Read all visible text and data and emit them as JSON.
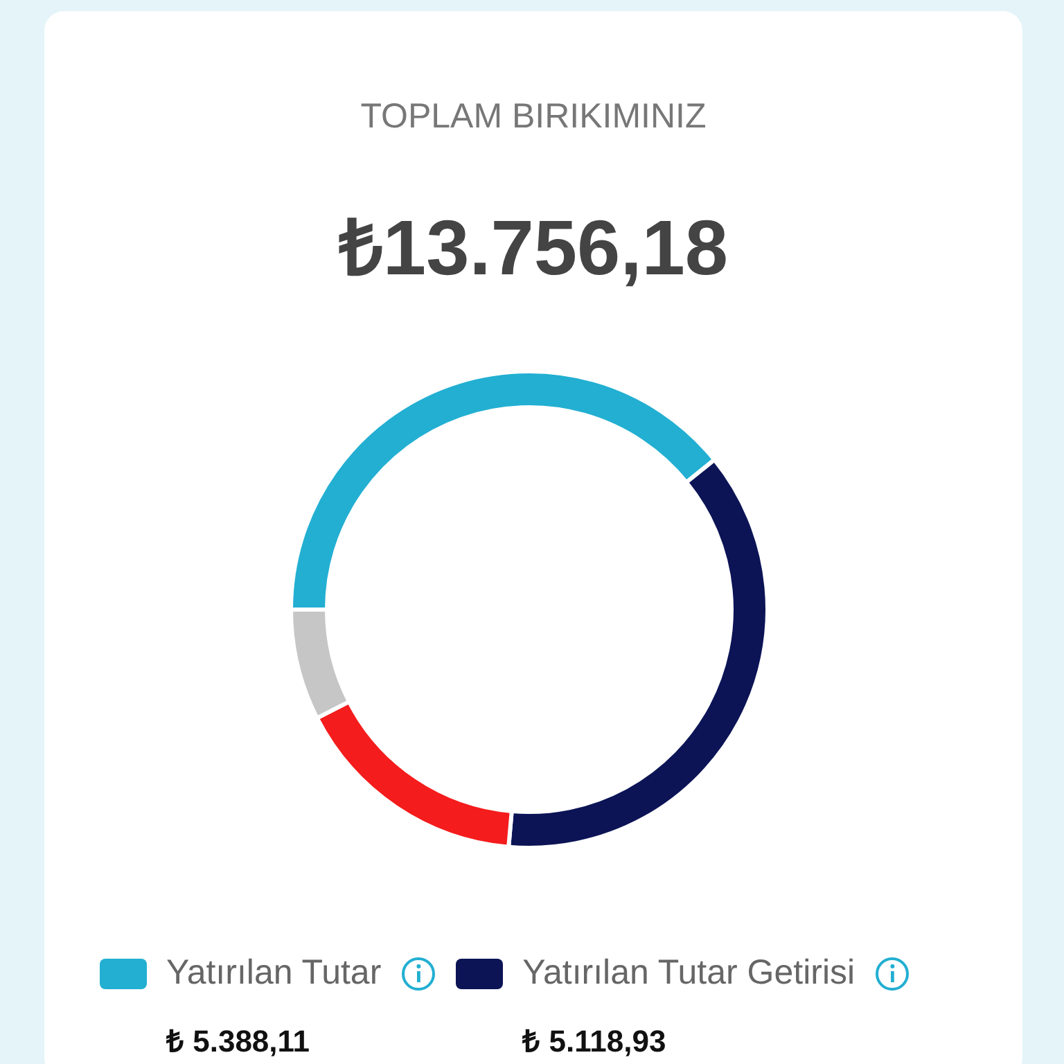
{
  "chart_data": {
    "type": "donut",
    "title": "TOPLAM BIRIKIMINIZ",
    "subtitle": "₺13.756,18",
    "categories": [
      "Yatırılan Tutar",
      "Yatırılan Tutar Getirisi",
      null,
      null
    ],
    "values": [
      39.17,
      37.21,
      16.1,
      7.52
    ],
    "annotations": [
      "₺ 5.388,11",
      "₺ 5.118,93"
    ],
    "colors": [
      "#22afd2",
      "#0c1456",
      "#f41c1c",
      "#c6c6c6"
    ],
    "legend": "bottom"
  }
}
